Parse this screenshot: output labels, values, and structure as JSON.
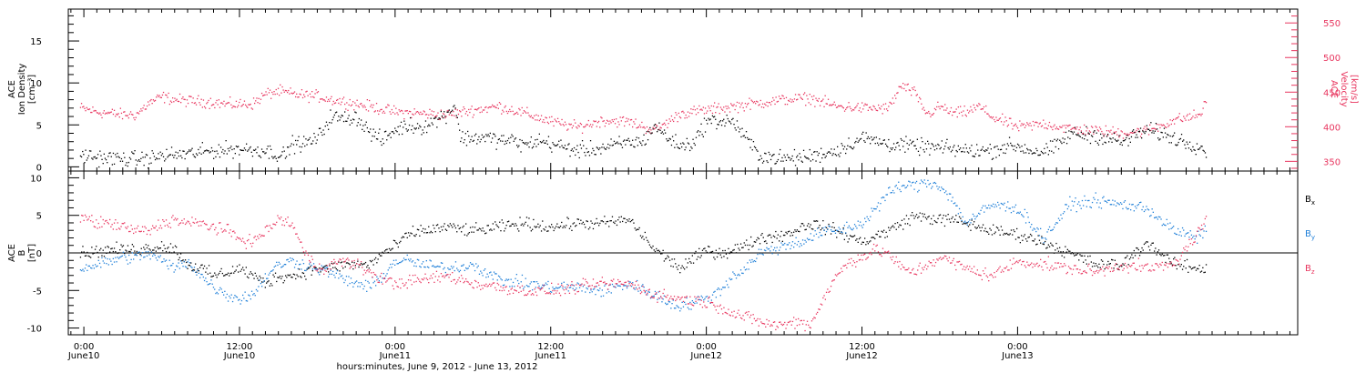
{
  "chart_data": [
    {
      "type": "scatter",
      "panel": "top",
      "ylabel_left": [
        "ACE",
        "Ion Density",
        "[cm⁻³]"
      ],
      "ylabel_right": [
        "ACE",
        "Velocity",
        "[km/s]"
      ],
      "y_left_ticks": [
        "0",
        "5",
        "10",
        "15"
      ],
      "y_left_lim": [
        -0.5,
        18.8
      ],
      "y_right_ticks": [
        "350",
        "400",
        "450",
        "500",
        "550"
      ],
      "y_right_lim": [
        336,
        570
      ],
      "colors": {
        "density": "#000000",
        "velocity": "#e8365f"
      },
      "series": [
        {
          "key": "density",
          "axis": "left",
          "x": [
            -0.3,
            1,
            3,
            5,
            6,
            8,
            10,
            12,
            14,
            15,
            15.6,
            15.9,
            17,
            18,
            19,
            20,
            21,
            22,
            23,
            24,
            25,
            26,
            27,
            28,
            28.6,
            29,
            30,
            31,
            32,
            33,
            34,
            35,
            36,
            38,
            40,
            42,
            43,
            44,
            45,
            46,
            47,
            48,
            50,
            52,
            54,
            56,
            58,
            60,
            62,
            64,
            66,
            67,
            68,
            70,
            71,
            72,
            73,
            74,
            75,
            76,
            78,
            80,
            82,
            84,
            86,
            86.5
          ],
          "y": [
            1.5,
            1.2,
            1.0,
            1.0,
            1.4,
            1.6,
            2.0,
            2.2,
            2.0,
            1.5,
            1.5,
            2.8,
            2.8,
            3.5,
            6.0,
            5.8,
            6.0,
            4.2,
            3.2,
            4.5,
            5.0,
            4.8,
            5.5,
            6.5,
            7.5,
            3.5,
            3.5,
            3.6,
            3.2,
            3.2,
            2.6,
            3.2,
            2.8,
            2.0,
            2.3,
            3.0,
            3.0,
            5.0,
            3.5,
            2.5,
            3.0,
            5.5,
            5.5,
            1.5,
            1.0,
            1.3,
            2.0,
            3.5,
            2.8,
            2.5,
            2.3,
            2.2,
            2.0,
            2.0,
            2.5,
            2.5,
            2.0,
            1.8,
            2.5,
            4.0,
            3.8,
            3.0,
            4.5,
            3.5,
            2.5,
            2.0
          ]
        },
        {
          "key": "velocity",
          "axis": "right",
          "x": [
            -0.3,
            1,
            2,
            3,
            4,
            5,
            6,
            7,
            8,
            9,
            10,
            11,
            12,
            13,
            14,
            15,
            16,
            17,
            18,
            19,
            20,
            22,
            24,
            26,
            28,
            30,
            32,
            34,
            36,
            38,
            40,
            42,
            44,
            46,
            48,
            50,
            52,
            54,
            56,
            58,
            60,
            62,
            63,
            64,
            65,
            66,
            67,
            68,
            69,
            70,
            72,
            74,
            76,
            78,
            80,
            82,
            84,
            86,
            86.5
          ],
          "y": [
            428,
            422,
            420,
            418,
            418,
            435,
            444,
            440,
            438,
            437,
            436,
            433,
            433,
            434,
            448,
            452,
            448,
            446,
            445,
            440,
            437,
            430,
            422,
            420,
            418,
            425,
            430,
            420,
            408,
            400,
            410,
            408,
            395,
            420,
            425,
            430,
            435,
            440,
            442,
            430,
            428,
            427,
            460,
            450,
            418,
            430,
            420,
            422,
            430,
            415,
            400,
            405,
            398,
            395,
            392,
            395,
            410,
            418,
            435
          ]
        }
      ]
    },
    {
      "type": "scatter",
      "panel": "bottom",
      "ylabel_left": [
        "ACE",
        "B",
        "[nT]"
      ],
      "y_ticks": [
        "-10",
        "-5",
        "0",
        "5",
        "10"
      ],
      "y_lim": [
        -10.9,
        10.9
      ],
      "legend": [
        {
          "label": "B",
          "sub": "x",
          "color": "#000000"
        },
        {
          "label": "B",
          "sub": "y",
          "color": "#1e7fd8"
        },
        {
          "label": "B",
          "sub": "z",
          "color": "#e8365f"
        }
      ],
      "series": [
        {
          "key": "Bx",
          "color": "#000000",
          "x": [
            -0.3,
            2,
            4,
            6,
            7,
            8,
            9,
            10,
            11,
            12,
            13,
            14,
            15,
            16,
            17,
            18,
            19,
            20,
            21,
            22,
            23,
            24,
            25,
            26,
            28,
            30,
            32,
            34,
            36,
            38,
            40,
            42,
            44,
            46,
            48,
            49,
            50,
            51,
            52,
            54,
            56,
            58,
            60,
            62,
            64,
            66,
            67,
            68,
            70,
            72,
            74,
            76,
            78,
            80,
            82,
            84,
            86,
            86.5
          ],
          "y": [
            0,
            0.5,
            0.5,
            1.0,
            0.5,
            -1.5,
            -2.0,
            -3.0,
            -2.5,
            -2.0,
            -3.0,
            -4.0,
            -3.0,
            -3.0,
            -2.5,
            -2.0,
            -2.0,
            -1.5,
            -1.5,
            -1.5,
            0,
            1.0,
            2.5,
            3.0,
            3.5,
            3.0,
            3.5,
            4.0,
            3.5,
            4.0,
            4.0,
            4.5,
            0.5,
            -2.0,
            0.5,
            0,
            0.5,
            1.0,
            2.0,
            2.5,
            4.0,
            3.0,
            1.5,
            3.0,
            5.0,
            4.5,
            4.5,
            4.0,
            3.0,
            2.5,
            1.5,
            0,
            -1.5,
            -1.5,
            1.5,
            -1.5,
            -2.0,
            -2.0
          ]
        },
        {
          "key": "By",
          "color": "#1e7fd8",
          "x": [
            -0.3,
            1,
            2,
            3,
            4,
            5,
            6,
            7,
            8,
            9,
            10,
            11,
            12,
            13,
            14,
            15,
            16,
            17,
            18,
            19,
            20,
            21,
            22,
            23,
            24,
            25,
            26,
            28,
            30,
            32,
            34,
            36,
            38,
            40,
            42,
            44,
            45,
            46,
            47,
            48,
            49,
            50,
            51,
            52,
            53,
            54,
            55,
            56,
            57,
            58,
            60,
            62,
            63,
            64,
            65,
            66,
            67,
            68,
            70,
            72,
            74,
            76,
            78,
            80,
            82,
            84,
            85,
            86,
            86.5
          ],
          "y": [
            -2.0,
            -1.5,
            -1.0,
            -0.5,
            -0.5,
            0,
            -1.0,
            -2.0,
            -1.0,
            -3.0,
            -4.5,
            -5.5,
            -6.0,
            -5.5,
            -3.0,
            -1.5,
            -1.0,
            -1.5,
            -2.0,
            -2.5,
            -3.5,
            -4.0,
            -4.5,
            -3.0,
            -1.0,
            -1.0,
            -1.5,
            -2.0,
            -1.5,
            -3.5,
            -4.0,
            -4.5,
            -4.5,
            -5.0,
            -4.0,
            -5.5,
            -6.5,
            -7.0,
            -6.5,
            -6.0,
            -5.0,
            -3.0,
            -2.0,
            0,
            0.5,
            1.0,
            1.5,
            2.0,
            3.0,
            3.0,
            4.0,
            8.0,
            9.0,
            9.0,
            9.5,
            9.0,
            7.0,
            4.0,
            6.5,
            6.0,
            2.0,
            6.5,
            7.0,
            6.5,
            6.0,
            3.0,
            2.5,
            2.0,
            3.5
          ]
        },
        {
          "key": "Bz",
          "color": "#e8365f",
          "x": [
            -0.3,
            1,
            2,
            3,
            4,
            5,
            6,
            7,
            8,
            9,
            10,
            11,
            12,
            13,
            14,
            15,
            16,
            17,
            18,
            19,
            20,
            21,
            22,
            23,
            24,
            26,
            28,
            30,
            32,
            34,
            36,
            38,
            40,
            42,
            44,
            46,
            48,
            49,
            50,
            51,
            52,
            53,
            54,
            55,
            56,
            57,
            58,
            59,
            60,
            61,
            62,
            63,
            64,
            66,
            68,
            70,
            72,
            74,
            76,
            78,
            80,
            82,
            84,
            86,
            86.5
          ],
          "y": [
            5.0,
            4.0,
            4.0,
            3.5,
            3.0,
            3.0,
            4.0,
            4.5,
            4.0,
            4.0,
            3.5,
            3.0,
            2.0,
            1.5,
            3.0,
            4.5,
            4.0,
            0,
            -2.0,
            -1.5,
            -1.0,
            -1.5,
            -2.5,
            -3.5,
            -4.0,
            -3.5,
            -3.0,
            -4.0,
            -4.5,
            -5.0,
            -5.0,
            -4.5,
            -4.0,
            -4.0,
            -5.5,
            -6.0,
            -6.5,
            -7.0,
            -8.0,
            -8.5,
            -9.0,
            -9.5,
            -9.5,
            -9.0,
            -9.5,
            -6.0,
            -3.0,
            -1.0,
            -0.5,
            0.5,
            0,
            -2.0,
            -2.5,
            -0.5,
            -2.0,
            -3.0,
            -1.0,
            -1.5,
            -2.0,
            -2.5,
            -1.5,
            -2.0,
            -1.5,
            3.0,
            4.5
          ]
        }
      ]
    }
  ],
  "x_axis": {
    "hour_lim": [
      -1.2,
      93.6
    ],
    "ticks": [
      {
        "h": 0,
        "time": "0:00",
        "date": "June10"
      },
      {
        "h": 12,
        "time": "12:00",
        "date": "June10"
      },
      {
        "h": 24,
        "time": "0:00",
        "date": "June11"
      },
      {
        "h": 36,
        "time": "12:00",
        "date": "June11"
      },
      {
        "h": 48,
        "time": "0:00",
        "date": "June12"
      },
      {
        "h": 60,
        "time": "12:00",
        "date": "June12"
      },
      {
        "h": 72,
        "time": "0:00",
        "date": "June13"
      }
    ],
    "title": "hours:minutes, June  9, 2012 - June 13, 2012"
  }
}
